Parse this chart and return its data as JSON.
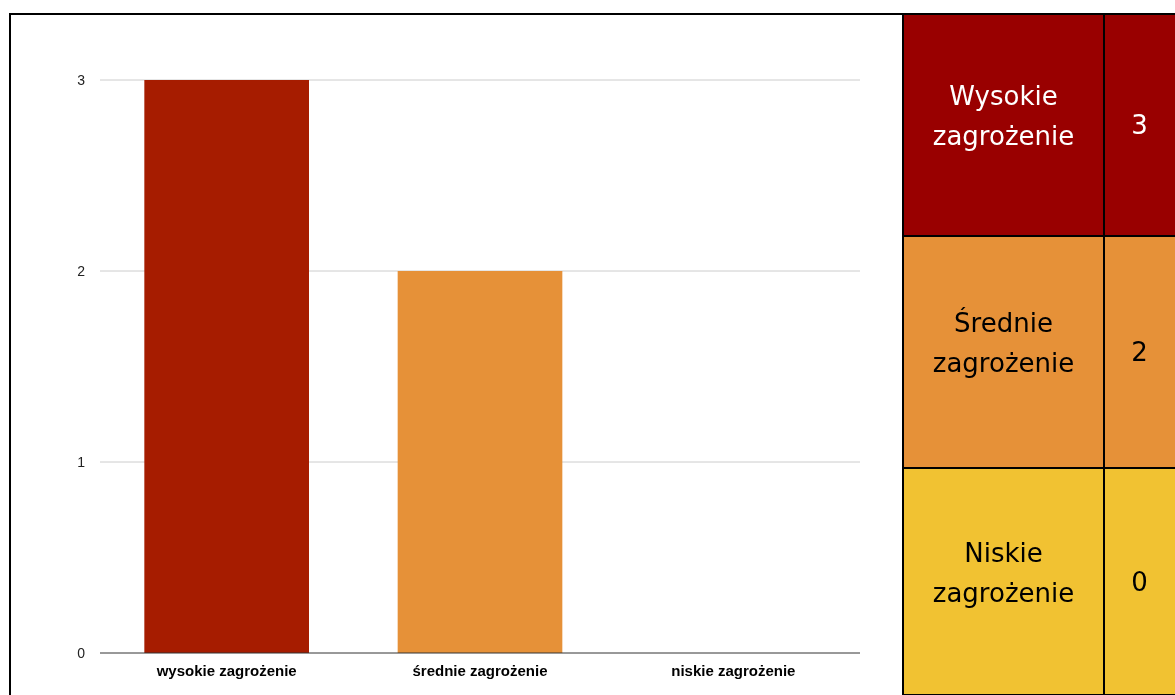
{
  "chart_data": [
    {
      "type": "bar",
      "categories": [
        "wysokie zagrożenie",
        "średnie zagrożenie",
        "niskie zagrożenie"
      ],
      "values": [
        3,
        2,
        0
      ],
      "colors": [
        "#a61c00",
        "#e69138",
        "#f1c232"
      ],
      "ylim": [
        0,
        3
      ],
      "yticks": [
        0,
        1,
        2,
        3
      ],
      "grid": "y"
    },
    {
      "type": "other",
      "categories": [
        "Wysokie zagrożenie",
        "Średnie zagrożenie",
        "Niskie zagrożenie"
      ],
      "values": [
        3,
        2,
        0
      ],
      "colors": [
        "#990000",
        "#e69138",
        "#f1c232"
      ],
      "data_labels": true
    }
  ]
}
